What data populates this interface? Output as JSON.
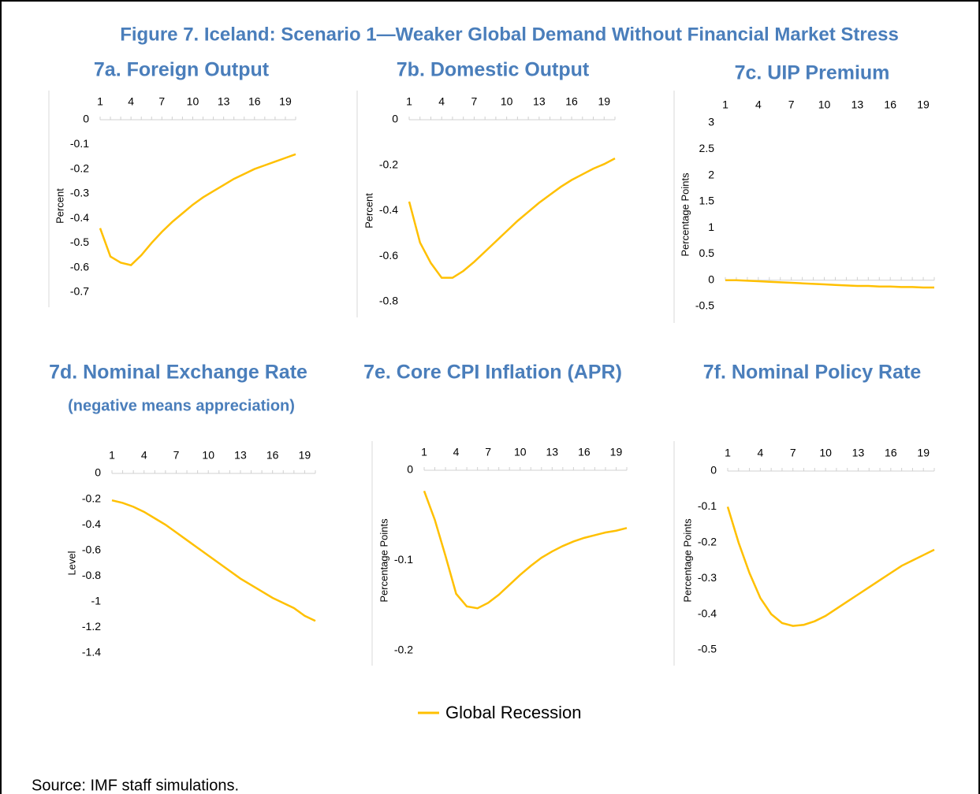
{
  "title": "Figure 7. Iceland: Scenario 1—Weaker Global Demand Without Financial Market Stress",
  "chart_data": [
    {
      "type": "line",
      "title": "7a. Foreign Output",
      "y_label": "Percent",
      "x": [
        1,
        2,
        3,
        4,
        5,
        6,
        7,
        8,
        9,
        10,
        11,
        12,
        13,
        14,
        15,
        16,
        17,
        18,
        19,
        20
      ],
      "xlim": [
        1,
        20
      ],
      "xticks": [
        1,
        4,
        7,
        10,
        13,
        16,
        19
      ],
      "values": [
        -0.44,
        -0.555,
        -0.58,
        -0.59,
        -0.55,
        -0.5,
        -0.455,
        -0.415,
        -0.38,
        -0.345,
        -0.315,
        -0.29,
        -0.265,
        -0.24,
        -0.22,
        -0.2,
        -0.185,
        -0.17,
        -0.155,
        -0.14
      ],
      "color": "#ffc000",
      "ylim": [
        -0.7,
        0
      ],
      "yticks": [
        0,
        -0.1,
        -0.2,
        -0.3,
        -0.4,
        -0.5,
        -0.6,
        -0.7
      ]
    },
    {
      "type": "line",
      "title": "7b. Domestic Output",
      "y_label": "Percent",
      "x": [
        1,
        2,
        3,
        4,
        5,
        6,
        7,
        8,
        9,
        10,
        11,
        12,
        13,
        14,
        15,
        16,
        17,
        18,
        19,
        20
      ],
      "xlim": [
        1,
        20
      ],
      "xticks": [
        1,
        4,
        7,
        10,
        13,
        16,
        19
      ],
      "values": [
        -0.36,
        -0.54,
        -0.63,
        -0.695,
        -0.695,
        -0.665,
        -0.625,
        -0.58,
        -0.535,
        -0.49,
        -0.445,
        -0.405,
        -0.365,
        -0.33,
        -0.295,
        -0.265,
        -0.24,
        -0.215,
        -0.195,
        -0.17
      ],
      "color": "#ffc000",
      "ylim": [
        -0.8,
        0
      ],
      "yticks": [
        0,
        -0.2,
        -0.4,
        -0.6,
        -0.8
      ]
    },
    {
      "type": "line",
      "title": "7c. UIP Premium",
      "y_label": "Percentage Points",
      "x": [
        1,
        2,
        3,
        4,
        5,
        6,
        7,
        8,
        9,
        10,
        11,
        12,
        13,
        14,
        15,
        16,
        17,
        18,
        19,
        20
      ],
      "xlim": [
        1,
        20
      ],
      "xticks": [
        1,
        4,
        7,
        10,
        13,
        16,
        19
      ],
      "values": [
        0,
        0,
        -0.01,
        -0.02,
        -0.03,
        -0.04,
        -0.05,
        -0.06,
        -0.07,
        -0.08,
        -0.09,
        -0.1,
        -0.11,
        -0.11,
        -0.12,
        -0.12,
        -0.13,
        -0.13,
        -0.14,
        -0.14
      ],
      "color": "#ffc000",
      "ylim": [
        -0.5,
        3
      ],
      "yticks": [
        3,
        2.5,
        2,
        1.5,
        1,
        0.5,
        0,
        -0.5
      ]
    },
    {
      "type": "line",
      "title": "7d. Nominal Exchange Rate",
      "subtitle": "(negative means appreciation)",
      "y_label": "Level",
      "x": [
        1,
        2,
        3,
        4,
        5,
        6,
        7,
        8,
        9,
        10,
        11,
        12,
        13,
        14,
        15,
        16,
        17,
        18,
        19,
        20
      ],
      "xlim": [
        1,
        20
      ],
      "xticks": [
        1,
        4,
        7,
        10,
        13,
        16,
        19
      ],
      "values": [
        -0.21,
        -0.23,
        -0.26,
        -0.3,
        -0.35,
        -0.4,
        -0.46,
        -0.52,
        -0.58,
        -0.64,
        -0.7,
        -0.76,
        -0.82,
        -0.87,
        -0.92,
        -0.97,
        -1.01,
        -1.05,
        -1.11,
        -1.15
      ],
      "color": "#ffc000",
      "ylim": [
        -1.4,
        0
      ],
      "yticks": [
        0,
        -0.2,
        -0.4,
        -0.6,
        -0.8,
        -1,
        -1.2,
        -1.4
      ]
    },
    {
      "type": "line",
      "title": "7e. Core CPI Inflation (APR)",
      "y_label": "Percentage Points",
      "x": [
        1,
        2,
        3,
        4,
        5,
        6,
        7,
        8,
        9,
        10,
        11,
        12,
        13,
        14,
        15,
        16,
        17,
        18,
        19,
        20
      ],
      "xlim": [
        1,
        20
      ],
      "xticks": [
        1,
        4,
        7,
        10,
        13,
        16,
        19
      ],
      "values": [
        -0.023,
        -0.055,
        -0.095,
        -0.137,
        -0.151,
        -0.153,
        -0.147,
        -0.138,
        -0.127,
        -0.116,
        -0.106,
        -0.097,
        -0.09,
        -0.084,
        -0.079,
        -0.075,
        -0.072,
        -0.069,
        -0.067,
        -0.064
      ],
      "color": "#ffc000",
      "ylim": [
        -0.2,
        0
      ],
      "yticks": [
        0,
        -0.1,
        -0.2
      ]
    },
    {
      "type": "line",
      "title": "7f. Nominal Policy Rate",
      "y_label": "Percentage Points",
      "x": [
        1,
        2,
        3,
        4,
        5,
        6,
        7,
        8,
        9,
        10,
        11,
        12,
        13,
        14,
        15,
        16,
        17,
        18,
        19,
        20
      ],
      "xlim": [
        1,
        20
      ],
      "xticks": [
        1,
        4,
        7,
        10,
        13,
        16,
        19
      ],
      "values": [
        -0.1,
        -0.2,
        -0.285,
        -0.355,
        -0.4,
        -0.425,
        -0.433,
        -0.43,
        -0.42,
        -0.405,
        -0.385,
        -0.365,
        -0.345,
        -0.325,
        -0.305,
        -0.285,
        -0.265,
        -0.25,
        -0.235,
        -0.22
      ],
      "color": "#ffc000",
      "ylim": [
        -0.5,
        0
      ],
      "yticks": [
        0,
        -0.1,
        -0.2,
        -0.3,
        -0.4,
        -0.5
      ]
    }
  ],
  "legend": [
    {
      "name": "Global Recession",
      "color": "#ffc000"
    }
  ],
  "source": "Source: IMF staff simulations."
}
